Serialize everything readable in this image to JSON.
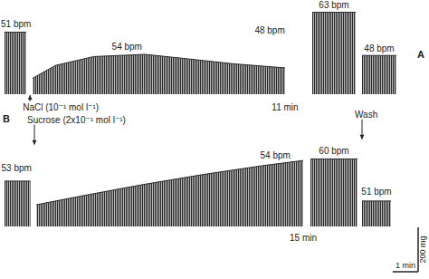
{
  "chart_data": [
    {
      "type": "area",
      "title": "A",
      "color": "#2a2a2a",
      "ylim": [
        0,
        450
      ],
      "tick_labels": false,
      "grid": false,
      "segments": [
        {
          "xlim": [
            0,
            11
          ],
          "x": [
            0,
            0.85,
            0.95,
            1.1,
            2,
            3.5,
            5.5,
            7,
            9,
            11
          ],
          "values": [
            280,
            280,
            null,
            72,
            130,
            170,
            180,
            162,
            137,
            119
          ],
          "annotations": [
            {
              "text": "51 bpm",
              "x": 0.45,
              "y": 320
            },
            {
              "text": "54 bpm",
              "x": 4.8,
              "y": 215
            },
            {
              "text": "48 bpm",
              "x": 10.4,
              "y": 290
            },
            {
              "text": "NaCl (10⁻¹ mol l⁻¹)",
              "x": 1.0,
              "y": -57,
              "marker": "arrow"
            },
            {
              "text": "11 min",
              "x": 11,
              "y": -57
            }
          ]
        },
        {
          "xlim": [
            0,
            1.7
          ],
          "x": [
            0,
            1.7
          ],
          "values": [
            370,
            370
          ],
          "annotations": [
            {
              "text": "63 bpm",
              "x": 0.85,
              "y": 405
            }
          ]
        },
        {
          "xlim": [
            0,
            1.4
          ],
          "x": [
            0,
            1.4
          ],
          "values": [
            175,
            175
          ],
          "annotations": [
            {
              "text": "48 bpm",
              "x": 0.7,
              "y": 210
            }
          ]
        }
      ]
    },
    {
      "type": "area",
      "title": "B",
      "color": "#2a2a2a",
      "ylim": [
        0,
        450
      ],
      "tick_labels": false,
      "grid": false,
      "segments": [
        {
          "xlim": [
            0,
            15
          ],
          "x": [
            0,
            1.3,
            1.4,
            1.6,
            4,
            7,
            10,
            13,
            15
          ],
          "values": [
            205,
            205,
            null,
            98,
            140,
            190,
            235,
            275,
            298
          ],
          "annotations": [
            {
              "text": "53 bpm",
              "x": 0.6,
              "y": 266
            },
            {
              "text": "Sucrose (2x10⁻¹ mol l⁻¹)",
              "x": 1.5,
              "y": 484,
              "marker": "arrow"
            },
            {
              "text": "54 bpm",
              "x": 13.6,
              "y": 325
            },
            {
              "text": "15 min",
              "x": 15,
              "y": -49
            }
          ]
        },
        {
          "xlim": [
            0,
            1.8
          ],
          "x": [
            0,
            1.8
          ],
          "values": [
            305,
            305
          ],
          "annotations": [
            {
              "text": "60 bpm",
              "x": 0.9,
              "y": 345
            }
          ]
        },
        {
          "xlim": [
            0,
            1.2
          ],
          "x": [
            0,
            1.2
          ],
          "values": [
            115,
            115
          ],
          "annotations": [
            {
              "text": "Wash",
              "x": 0,
              "y": 508,
              "marker": "arrow"
            },
            {
              "text": "51 bpm",
              "x": 0.6,
              "y": 160
            }
          ]
        }
      ]
    }
  ],
  "scale_bars": {
    "y": {
      "value": 200,
      "label": "200 mg"
    },
    "x": {
      "value": 1,
      "label": "1 min"
    }
  }
}
